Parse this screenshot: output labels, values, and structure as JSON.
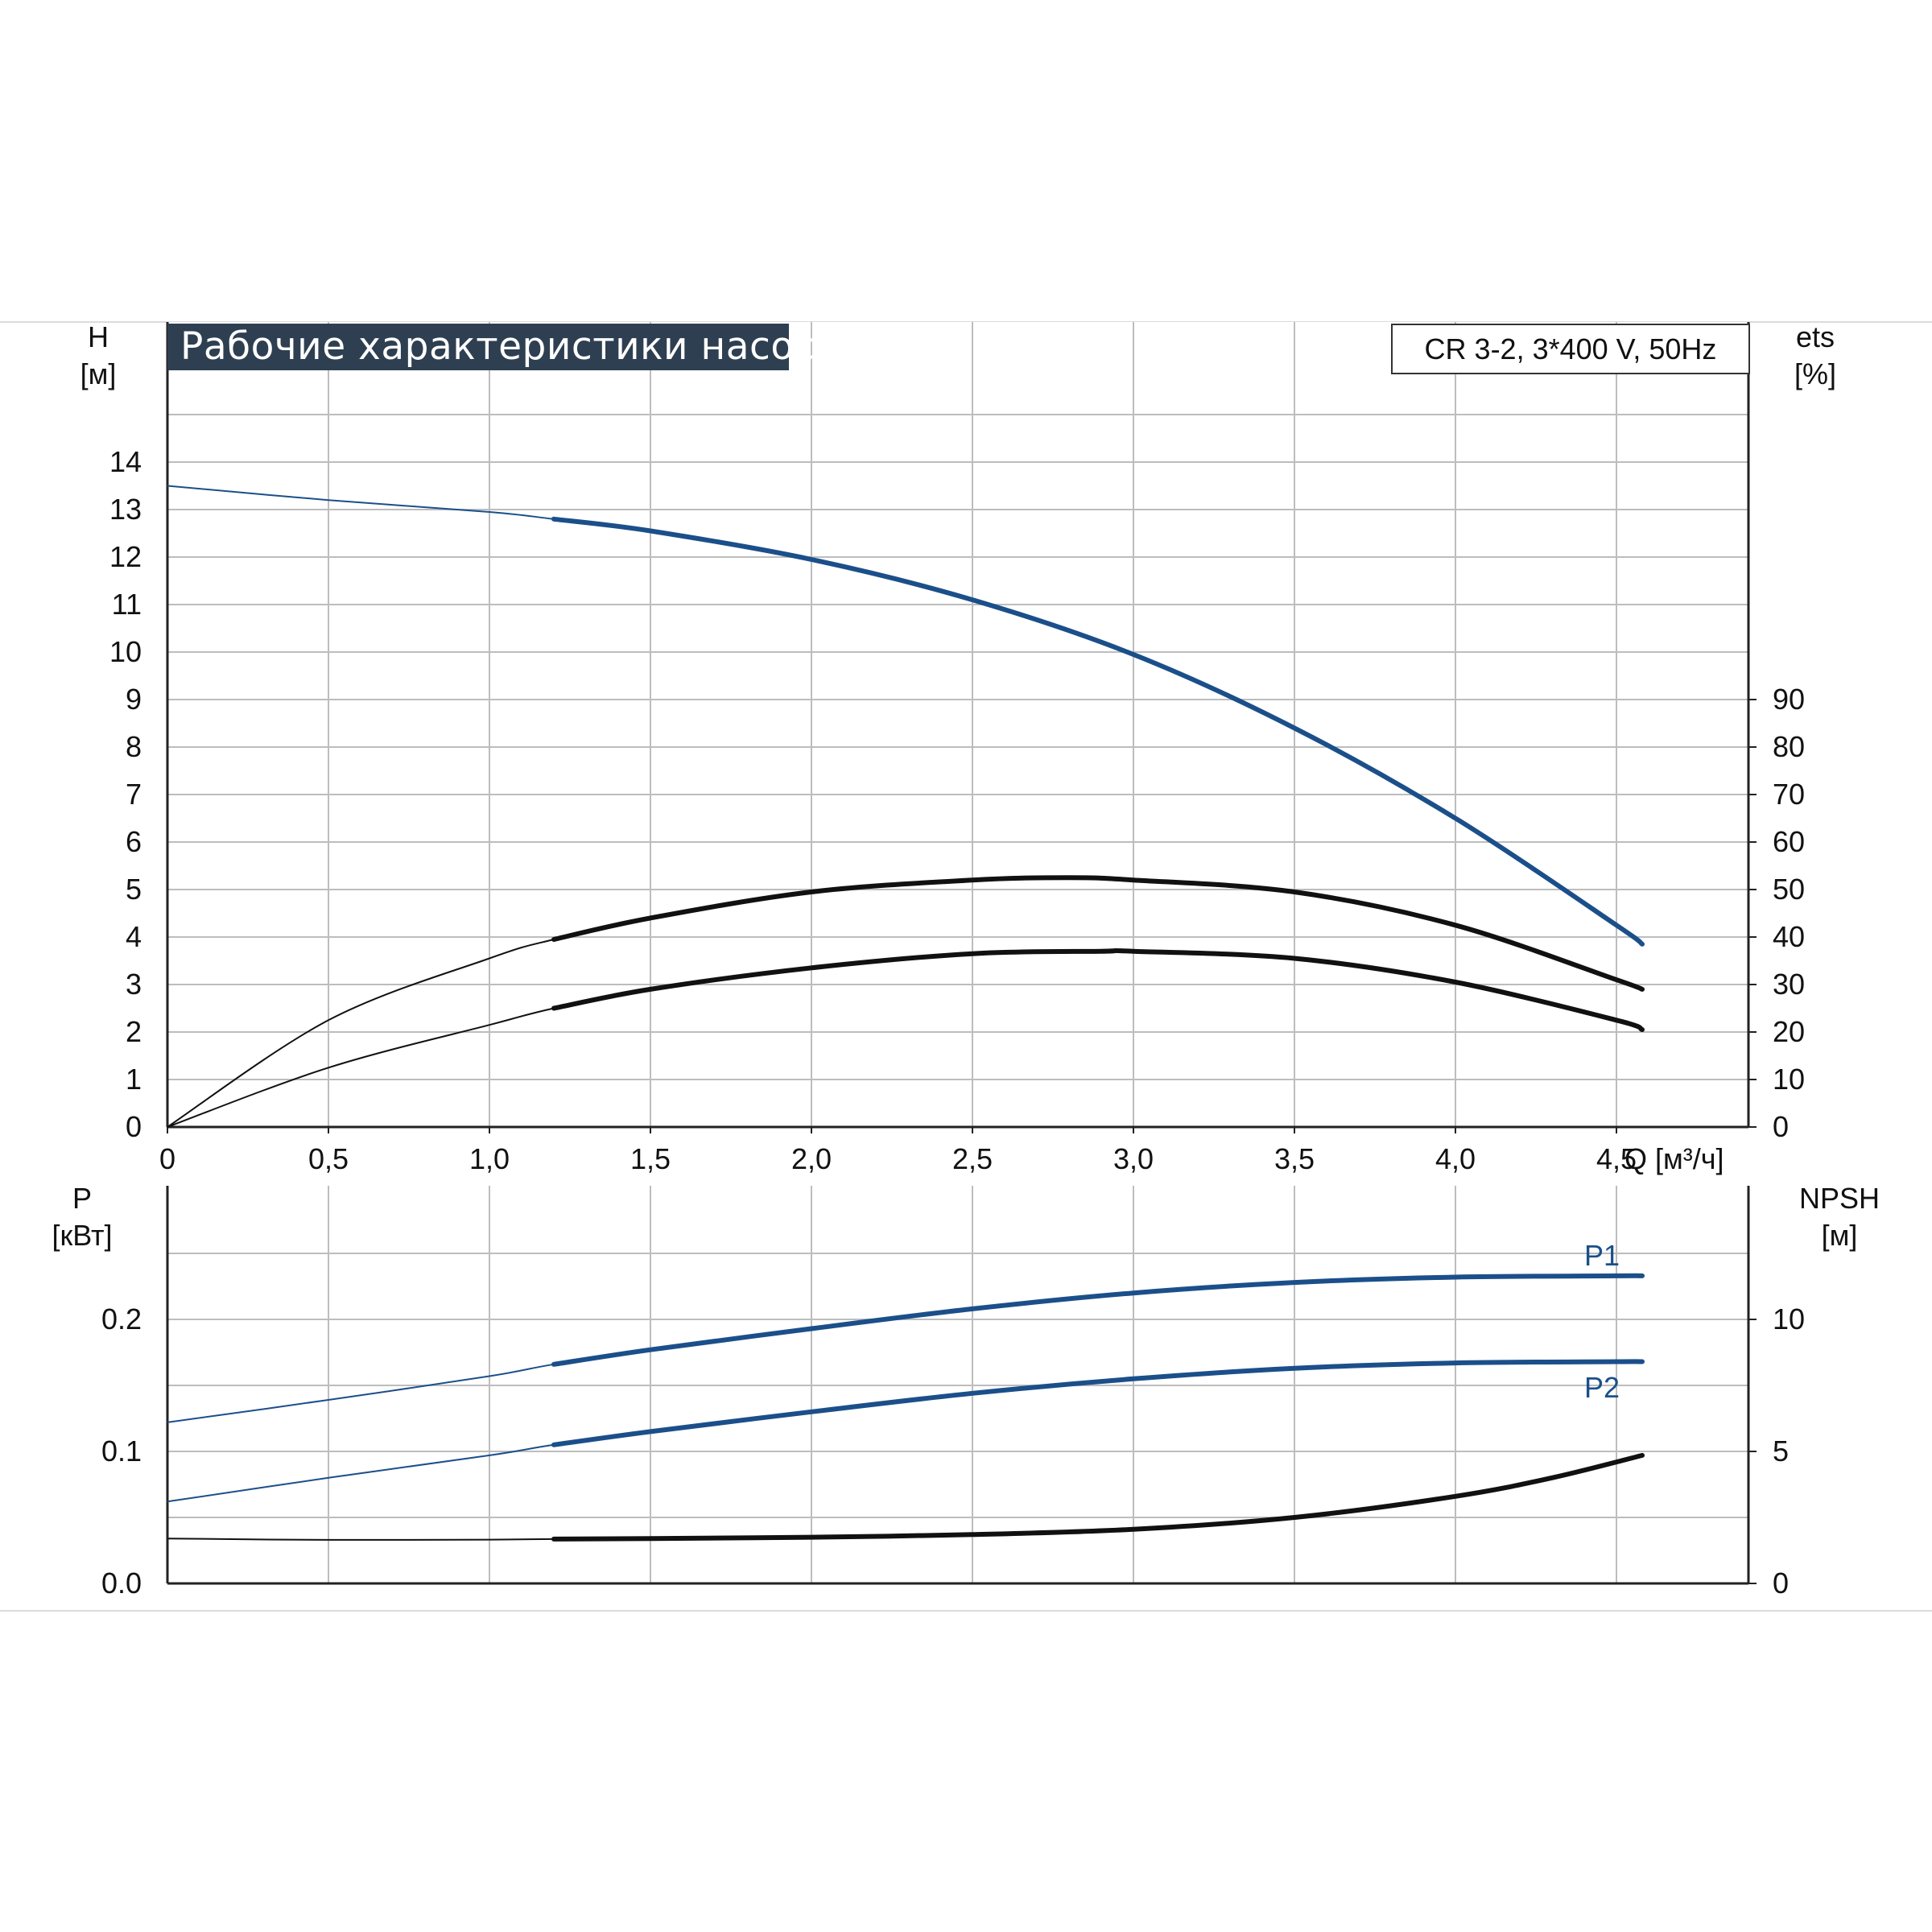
{
  "chart_data": [
    {
      "type": "line",
      "title": "Рабочие характеристики насоса",
      "model": "CR 3-2, 3*400 V, 50Hz",
      "xlabel": "Q [м³/ч]",
      "xlim": [
        0,
        5
      ],
      "x_ticks": [
        "0",
        "0,5",
        "1,0",
        "1,5",
        "2,0",
        "2,5",
        "3,0",
        "3,5",
        "4,0",
        "4,5"
      ],
      "left_axis": {
        "label_line1": "H",
        "label_line2": "[м]",
        "ylim": [
          0,
          14
        ],
        "ticks": [
          "0",
          "1",
          "2",
          "3",
          "4",
          "5",
          "6",
          "7",
          "8",
          "9",
          "10",
          "11",
          "12",
          "13",
          "14"
        ]
      },
      "right_axis": {
        "label_line1": "ets",
        "label_line2": "[%]",
        "ylim": [
          0,
          140
        ],
        "ticks": [
          "0",
          "10",
          "20",
          "30",
          "40",
          "50",
          "60",
          "70",
          "80",
          "90"
        ]
      },
      "grid": true,
      "series": [
        {
          "axis": "left",
          "color": "#1b4f8a",
          "x": [
            0,
            0.5,
            1.0,
            1.2,
            1.5,
            2.0,
            2.5,
            3.0,
            3.5,
            4.0,
            4.5,
            4.58
          ],
          "y": [
            13.5,
            13.2,
            12.95,
            12.8,
            12.55,
            11.95,
            11.1,
            9.95,
            8.4,
            6.5,
            4.25,
            3.85
          ]
        },
        {
          "axis": "right",
          "color": "#111111",
          "x": [
            0,
            0.5,
            1.0,
            1.2,
            1.5,
            2.0,
            2.5,
            2.8,
            3.0,
            3.5,
            4.0,
            4.5,
            4.58
          ],
          "y": [
            0,
            22.5,
            35.5,
            39.5,
            44,
            49.5,
            52,
            52.5,
            52,
            49.5,
            42.5,
            31,
            29
          ]
        },
        {
          "axis": "right",
          "color": "#111111",
          "x": [
            0,
            0.5,
            1.0,
            1.2,
            1.5,
            2.0,
            2.5,
            2.9,
            3.0,
            3.5,
            4.0,
            4.5,
            4.58
          ],
          "y": [
            0,
            12.5,
            21.5,
            25,
            29,
            33.5,
            36.5,
            37,
            37,
            35.5,
            30.5,
            22.5,
            20.5
          ]
        }
      ]
    },
    {
      "type": "line",
      "xlim": [
        0,
        5
      ],
      "left_axis": {
        "label_line1": "P",
        "label_line2": "[кВт]",
        "ylim": [
          0,
          0.3
        ],
        "ticks": [
          "0.0",
          "0.1",
          "0.2"
        ]
      },
      "right_axis": {
        "label_line1": "NPSH",
        "label_line2": "[м]",
        "ylim": [
          0,
          15
        ],
        "ticks": [
          "0",
          "5",
          "10"
        ]
      },
      "grid": true,
      "series": [
        {
          "name": "P1",
          "axis": "left",
          "color": "#1b4f8a",
          "x": [
            0,
            0.5,
            1.0,
            1.2,
            1.5,
            2.0,
            2.5,
            3.0,
            3.5,
            4.0,
            4.5,
            4.58
          ],
          "y": [
            0.122,
            0.139,
            0.157,
            0.166,
            0.177,
            0.193,
            0.208,
            0.22,
            0.228,
            0.232,
            0.233,
            0.233
          ]
        },
        {
          "name": "P2",
          "axis": "left",
          "color": "#1b4f8a",
          "x": [
            0,
            0.5,
            1.0,
            1.2,
            1.5,
            2.0,
            2.5,
            3.0,
            3.5,
            4.0,
            4.5,
            4.58
          ],
          "y": [
            0.062,
            0.08,
            0.097,
            0.105,
            0.115,
            0.13,
            0.144,
            0.155,
            0.163,
            0.167,
            0.168,
            0.168
          ]
        },
        {
          "axis": "right",
          "color": "#111111",
          "x": [
            0,
            0.5,
            1.0,
            1.2,
            1.5,
            2.0,
            2.5,
            3.0,
            3.5,
            4.0,
            4.3,
            4.58
          ],
          "y": [
            1.7,
            1.65,
            1.66,
            1.68,
            1.7,
            1.75,
            1.85,
            2.05,
            2.5,
            3.3,
            4.0,
            4.85
          ]
        }
      ]
    }
  ]
}
